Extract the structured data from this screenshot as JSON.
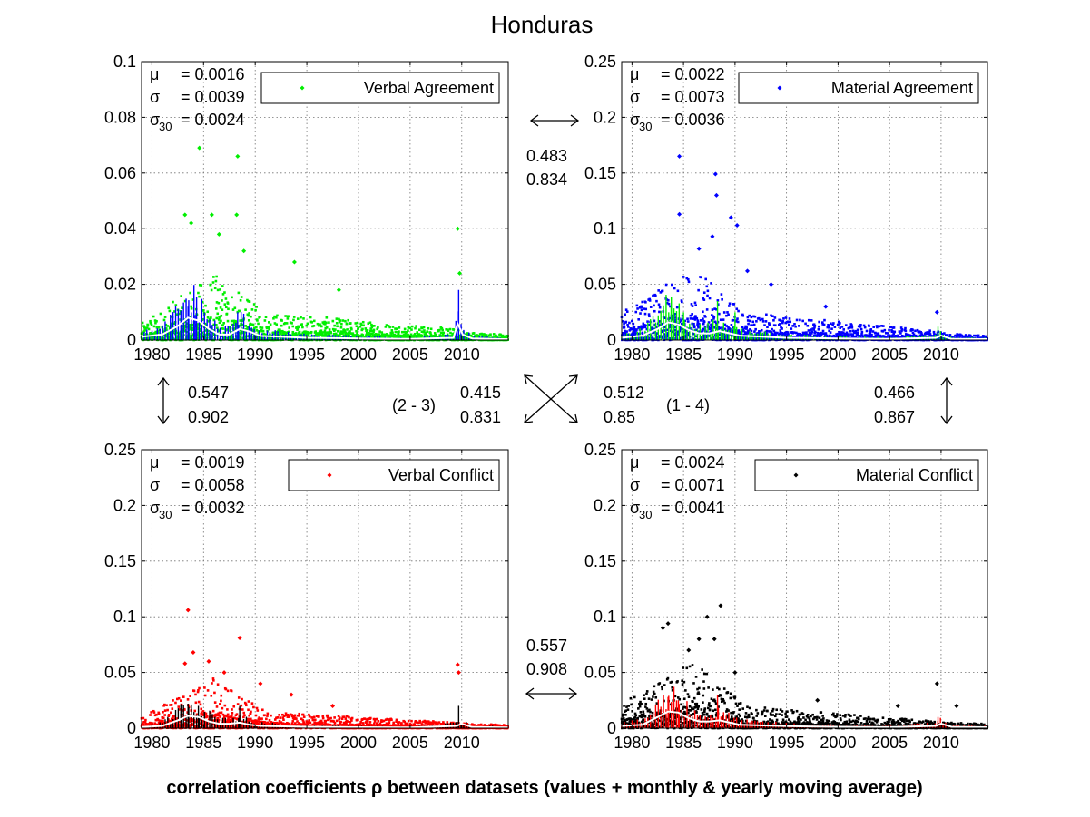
{
  "figure": {
    "title": "Honduras",
    "footer": "correlation coefficients ρ between datasets (values + monthly & yearly moving average)"
  },
  "connectors": {
    "top": {
      "v1": "0.483",
      "v2": "0.834"
    },
    "bottom": {
      "v1": "0.557",
      "v2": "0.908"
    },
    "left": {
      "v1": "0.547",
      "v2": "0.902"
    },
    "right": {
      "v1": "0.466",
      "v2": "0.867"
    },
    "diag_23": {
      "label": "(2 - 3)",
      "v1": "0.415",
      "v2": "0.831"
    },
    "diag_14": {
      "label": "(1 - 4)",
      "v1": "0.512",
      "v2": "0.85"
    }
  },
  "chart_data": [
    {
      "type": "scatter",
      "panel": "top-left",
      "series_name": "Verbal Agreement",
      "color": "#00ee00",
      "ma_color": "#0000ff",
      "stats": {
        "mu": "= 0.0016",
        "sigma": "= 0.0039",
        "sigma30": "= 0.0024"
      },
      "xlim": [
        1979,
        2014.5
      ],
      "ylim": [
        0,
        0.1
      ],
      "xticks": [
        1980,
        1985,
        1990,
        1995,
        2000,
        2005,
        2010
      ],
      "xtick_labels": [
        "1980",
        "1985",
        "1990",
        "1995",
        "2000",
        "2005",
        "2010"
      ],
      "yticks": [
        0,
        0.02,
        0.04,
        0.06,
        0.08,
        0.1
      ],
      "ytick_labels": [
        "0",
        "0.02",
        "0.04",
        "0.06",
        "0.08",
        "0.1"
      ],
      "grid": true,
      "legend": "top-right",
      "outliers": [
        [
          1983.2,
          0.045
        ],
        [
          1983.8,
          0.042
        ],
        [
          1984.6,
          0.069
        ],
        [
          1985.8,
          0.045
        ],
        [
          1986.5,
          0.038
        ],
        [
          1988.3,
          0.066
        ],
        [
          1988.2,
          0.045
        ],
        [
          1988.9,
          0.032
        ],
        [
          1993.8,
          0.028
        ],
        [
          1998.1,
          0.018
        ],
        [
          2009.6,
          0.04
        ],
        [
          2009.8,
          0.024
        ]
      ],
      "peaks": [
        [
          1983.5,
          0.012
        ],
        [
          1984.2,
          0.009
        ],
        [
          1988.3,
          0.01
        ],
        [
          2009.7,
          0.018
        ]
      ],
      "noise": [
        [
          1979,
          0.006
        ],
        [
          1986,
          0.024
        ],
        [
          1991,
          0.01
        ],
        [
          2009.5,
          0.004
        ],
        [
          2010.5,
          0.003
        ],
        [
          2014.5,
          0.002
        ]
      ],
      "ma": [
        [
          1979,
          0.0012
        ],
        [
          1981,
          0.002
        ],
        [
          1982.5,
          0.005
        ],
        [
          1983.5,
          0.008
        ],
        [
          1984.5,
          0.007
        ],
        [
          1985.5,
          0.004
        ],
        [
          1986.5,
          0.002
        ],
        [
          1987.5,
          0.002
        ],
        [
          1988.5,
          0.004
        ],
        [
          1989.5,
          0.003
        ],
        [
          1990.5,
          0.0015
        ],
        [
          1995,
          0.0008
        ],
        [
          2000,
          0.0006
        ],
        [
          2005,
          0.0004
        ],
        [
          2009.2,
          0.0008
        ],
        [
          2009.6,
          0.006
        ],
        [
          2010.1,
          0.002
        ],
        [
          2011,
          0.0006
        ],
        [
          2014.5,
          0.0003
        ]
      ]
    },
    {
      "type": "scatter",
      "panel": "top-right",
      "series_name": "Material Agreement",
      "color": "#0000ff",
      "ma_color": "#00ee00",
      "stats": {
        "mu": "= 0.0022",
        "sigma": "= 0.0073",
        "sigma30": "= 0.0036"
      },
      "xlim": [
        1979,
        2014.5
      ],
      "ylim": [
        0,
        0.25
      ],
      "xticks": [
        1980,
        1985,
        1990,
        1995,
        2000,
        2005,
        2010
      ],
      "xtick_labels": [
        "1980",
        "1985",
        "1990",
        "1995",
        "2000",
        "2005",
        "2010"
      ],
      "yticks": [
        0,
        0.05,
        0.1,
        0.15,
        0.2,
        0.25
      ],
      "ytick_labels": [
        "0",
        "0.05",
        "0.1",
        "0.15",
        "0.2",
        "0.25"
      ],
      "grid": true,
      "legend": "top-right",
      "outliers": [
        [
          1984.6,
          0.165
        ],
        [
          1984.6,
          0.113
        ],
        [
          1988.1,
          0.149
        ],
        [
          1988.2,
          0.13
        ],
        [
          1989.6,
          0.11
        ],
        [
          1990.2,
          0.103
        ],
        [
          1986.5,
          0.082
        ],
        [
          1987.8,
          0.093
        ],
        [
          1991.2,
          0.062
        ],
        [
          1993.5,
          0.05
        ],
        [
          1998.8,
          0.03
        ],
        [
          2009.6,
          0.025
        ]
      ],
      "peaks": [
        [
          1983.8,
          0.03
        ],
        [
          1985,
          0.025
        ],
        [
          1988.3,
          0.035
        ],
        [
          1990,
          0.025
        ],
        [
          2009.7,
          0.012
        ]
      ],
      "noise": [
        [
          1979,
          0.025
        ],
        [
          1986,
          0.065
        ],
        [
          1991,
          0.025
        ],
        [
          2009.5,
          0.008
        ],
        [
          2010.5,
          0.006
        ],
        [
          2014.5,
          0.004
        ]
      ],
      "ma": [
        [
          1979,
          0.002
        ],
        [
          1981,
          0.004
        ],
        [
          1982.5,
          0.01
        ],
        [
          1983.5,
          0.016
        ],
        [
          1984.5,
          0.014
        ],
        [
          1985.5,
          0.009
        ],
        [
          1986.5,
          0.006
        ],
        [
          1987.5,
          0.006
        ],
        [
          1988.5,
          0.008
        ],
        [
          1989.5,
          0.006
        ],
        [
          1990.5,
          0.004
        ],
        [
          1995,
          0.002
        ],
        [
          2000,
          0.0015
        ],
        [
          2005,
          0.001
        ],
        [
          2009.5,
          0.002
        ],
        [
          2010,
          0.004
        ],
        [
          2011,
          0.001
        ],
        [
          2014.5,
          0.0008
        ]
      ]
    },
    {
      "type": "scatter",
      "panel": "bottom-left",
      "series_name": "Verbal Conflict",
      "color": "#ff0000",
      "ma_color": "#000000",
      "stats": {
        "mu": "= 0.0019",
        "sigma": "= 0.0058",
        "sigma30": "= 0.0032"
      },
      "xlim": [
        1979,
        2014.5
      ],
      "ylim": [
        0,
        0.25
      ],
      "xticks": [
        1980,
        1985,
        1990,
        1995,
        2000,
        2005,
        2010
      ],
      "xtick_labels": [
        "1980",
        "1985",
        "1990",
        "1995",
        "2000",
        "2005",
        "2010"
      ],
      "yticks": [
        0,
        0.05,
        0.1,
        0.15,
        0.2,
        0.25
      ],
      "ytick_labels": [
        "0",
        "0.05",
        "0.1",
        "0.15",
        "0.2",
        "0.25"
      ],
      "grid": true,
      "legend": "top-right",
      "outliers": [
        [
          1983.5,
          0.106
        ],
        [
          1988.5,
          0.081
        ],
        [
          1984,
          0.068
        ],
        [
          1985.5,
          0.06
        ],
        [
          1987,
          0.05
        ],
        [
          1983.2,
          0.058
        ],
        [
          2009.6,
          0.057
        ],
        [
          2009.7,
          0.05
        ],
        [
          1990.5,
          0.04
        ],
        [
          1993.5,
          0.03
        ],
        [
          1997.5,
          0.02
        ]
      ],
      "peaks": [
        [
          1983.5,
          0.022
        ],
        [
          1984.5,
          0.02
        ],
        [
          1988.5,
          0.02
        ],
        [
          2009.7,
          0.02
        ]
      ],
      "noise": [
        [
          1979,
          0.01
        ],
        [
          1986,
          0.045
        ],
        [
          1991,
          0.015
        ],
        [
          2009.5,
          0.005
        ],
        [
          2010.5,
          0.004
        ],
        [
          2014.5,
          0.003
        ]
      ],
      "ma": [
        [
          1979,
          0.001
        ],
        [
          1981,
          0.002
        ],
        [
          1982.5,
          0.007
        ],
        [
          1983.5,
          0.011
        ],
        [
          1984.5,
          0.01
        ],
        [
          1985.5,
          0.006
        ],
        [
          1986.5,
          0.004
        ],
        [
          1987.5,
          0.004
        ],
        [
          1988.5,
          0.005
        ],
        [
          1989.5,
          0.003
        ],
        [
          1990.5,
          0.002
        ],
        [
          1995,
          0.0012
        ],
        [
          2000,
          0.0008
        ],
        [
          2005,
          0.0006
        ],
        [
          2009.5,
          0.002
        ],
        [
          2010,
          0.004
        ],
        [
          2011,
          0.001
        ],
        [
          2014.5,
          0.0006
        ]
      ]
    },
    {
      "type": "scatter",
      "panel": "bottom-right",
      "series_name": "Material Conflict",
      "color": "#000000",
      "ma_color": "#ff0000",
      "stats": {
        "mu": "= 0.0024",
        "sigma": "= 0.0071",
        "sigma30": "= 0.0041"
      },
      "xlim": [
        1979,
        2014.5
      ],
      "ylim": [
        0,
        0.25
      ],
      "xticks": [
        1980,
        1985,
        1990,
        1995,
        2000,
        2005,
        2010
      ],
      "xtick_labels": [
        "1980",
        "1985",
        "1990",
        "1995",
        "2000",
        "2005",
        "2010"
      ],
      "yticks": [
        0,
        0.05,
        0.1,
        0.15,
        0.2,
        0.25
      ],
      "ytick_labels": [
        "0",
        "0.05",
        "0.1",
        "0.15",
        "0.2",
        "0.25"
      ],
      "grid": true,
      "legend": "top-right",
      "outliers": [
        [
          1988.6,
          0.11
        ],
        [
          1987.3,
          0.1
        ],
        [
          1983.5,
          0.094
        ],
        [
          1983,
          0.09
        ],
        [
          1986.5,
          0.08
        ],
        [
          1988,
          0.08
        ],
        [
          1985.5,
          0.07
        ],
        [
          1990,
          0.05
        ],
        [
          2009.6,
          0.04
        ],
        [
          2005.8,
          0.02
        ],
        [
          1998,
          0.025
        ],
        [
          2011.5,
          0.02
        ]
      ],
      "peaks": [
        [
          1983.5,
          0.028
        ],
        [
          1984.5,
          0.025
        ],
        [
          1988.3,
          0.03
        ],
        [
          2009.7,
          0.01
        ]
      ],
      "noise": [
        [
          1979,
          0.022
        ],
        [
          1986,
          0.06
        ],
        [
          1991,
          0.02
        ],
        [
          2009.5,
          0.006
        ],
        [
          2010.5,
          0.005
        ],
        [
          2014.5,
          0.004
        ]
      ],
      "ma": [
        [
          1979,
          0.002
        ],
        [
          1981,
          0.003
        ],
        [
          1982.5,
          0.01
        ],
        [
          1983.5,
          0.015
        ],
        [
          1984.5,
          0.014
        ],
        [
          1985.5,
          0.009
        ],
        [
          1986.5,
          0.006
        ],
        [
          1987.5,
          0.006
        ],
        [
          1988.5,
          0.007
        ],
        [
          1989.5,
          0.005
        ],
        [
          1990.5,
          0.003
        ],
        [
          1995,
          0.0018
        ],
        [
          2000,
          0.0012
        ],
        [
          2005,
          0.0009
        ],
        [
          2009.5,
          0.002
        ],
        [
          2010,
          0.004
        ],
        [
          2011,
          0.0012
        ],
        [
          2014.5,
          0.0008
        ]
      ]
    }
  ]
}
